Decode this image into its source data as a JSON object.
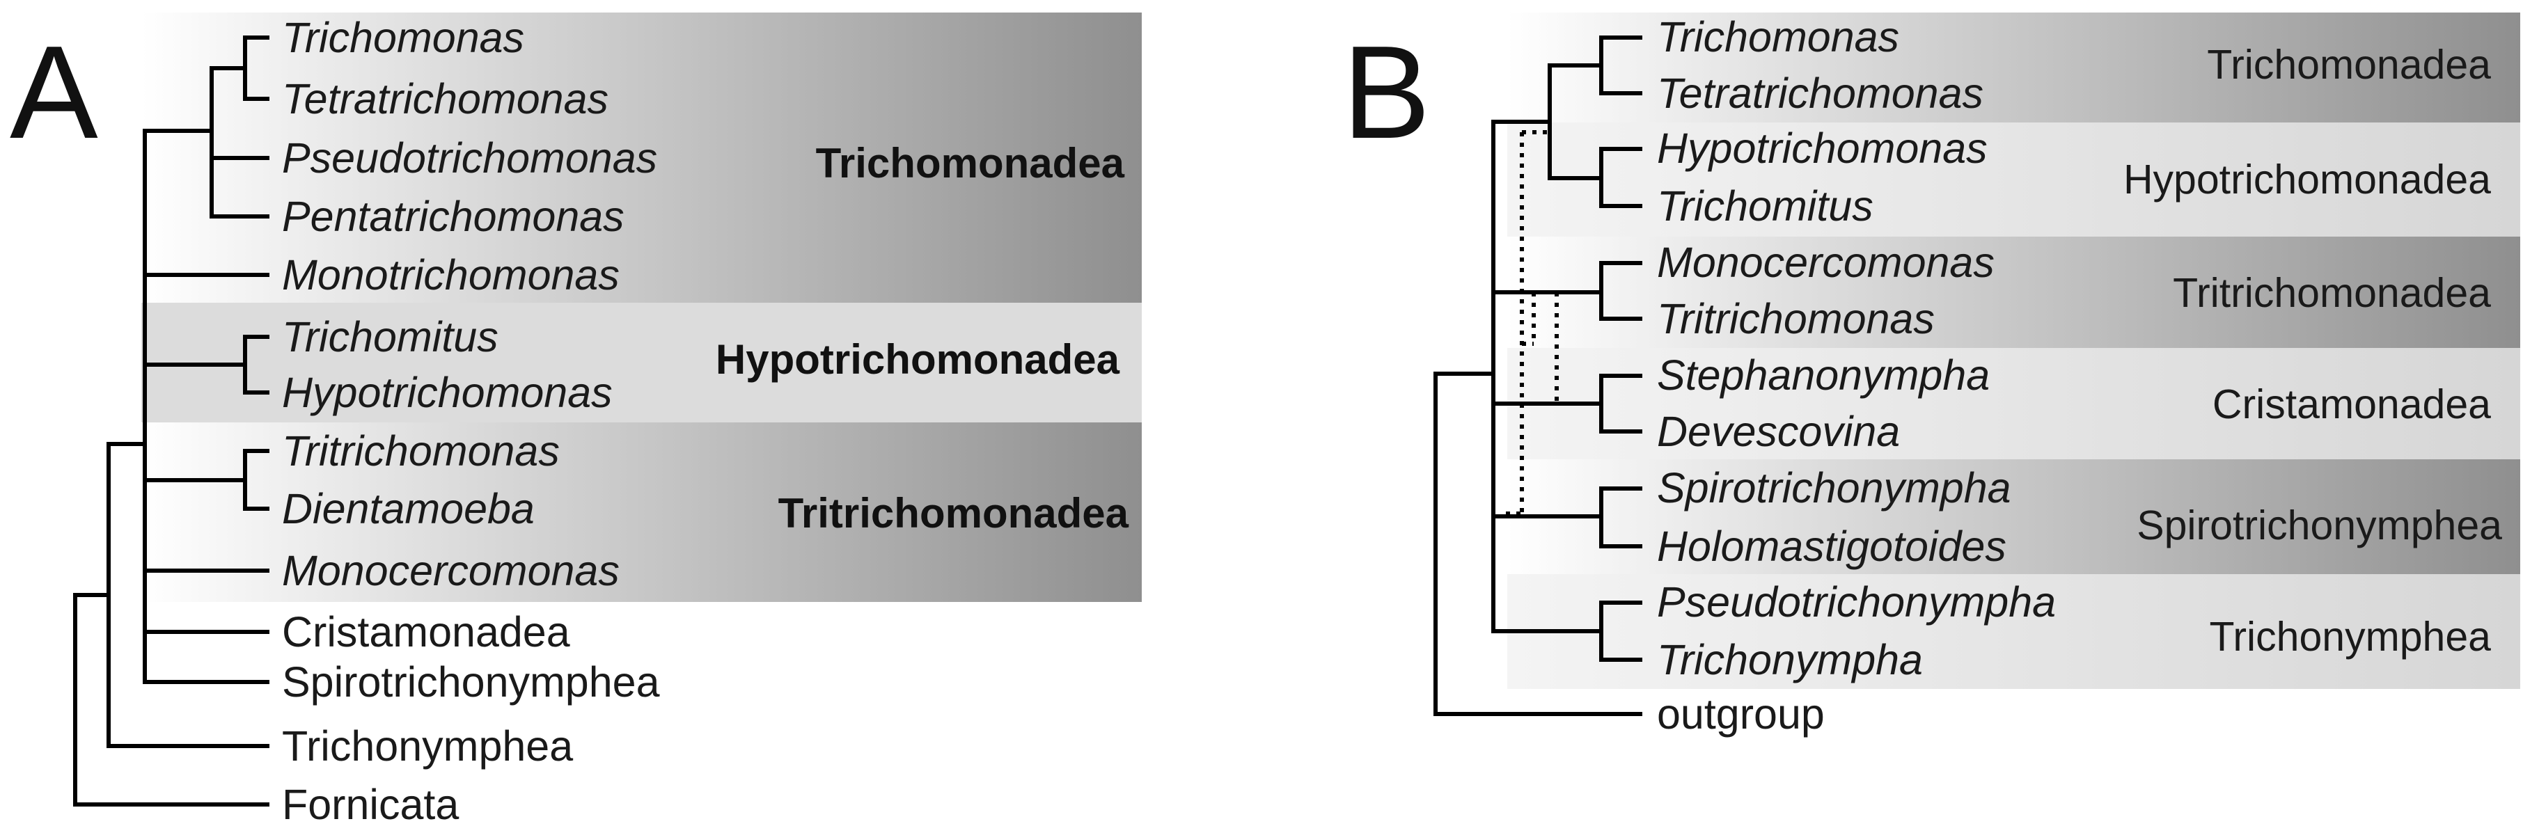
{
  "colors": {
    "band_dark": "#8f8f8f",
    "band_light": "#dcdcdc",
    "branch": "#000000"
  },
  "panel_a": {
    "letter": "A",
    "clades": {
      "trichomonadea": {
        "label": "Trichomonadea",
        "taxa": [
          "Trichomonas",
          "Tetratrichomonas",
          "Pseudotrichomonas",
          "Pentatrichomonas",
          "Monotrichomonas"
        ]
      },
      "hypotrichomonadea": {
        "label": "Hypotrichomonadea",
        "taxa": [
          "Trichomitus",
          "Hypotrichomonas"
        ]
      },
      "tritrichomonadea": {
        "label": "Tritrichomonadea",
        "taxa": [
          "Tritrichomonas",
          "Dientamoeba",
          "Monocercomonas"
        ]
      }
    },
    "other_taxa": [
      "Cristamonadea",
      "Spirotrichonymphea",
      "Trichonymphea",
      "Fornicata"
    ]
  },
  "panel_b": {
    "letter": "B",
    "clades": [
      {
        "label": "Trichomonadea",
        "taxa": [
          "Trichomonas",
          "Tetratrichomonas"
        ]
      },
      {
        "label": "Hypotrichomonadea",
        "taxa": [
          "Hypotrichomonas",
          "Trichomitus"
        ]
      },
      {
        "label": "Tritrichomonadea",
        "taxa": [
          "Monocercomonas",
          "Tritrichomonas"
        ]
      },
      {
        "label": "Cristamonadea",
        "taxa": [
          "Stephanonympha",
          "Devescovina"
        ]
      },
      {
        "label": "Spirotrichonymphea",
        "taxa": [
          "Spirotrichonympha",
          "Holomastigotoides"
        ]
      },
      {
        "label": "Trichonymphea",
        "taxa": [
          "Pseudotrichonympha",
          "Trichonympha"
        ]
      }
    ],
    "outgroup": "outgroup"
  }
}
